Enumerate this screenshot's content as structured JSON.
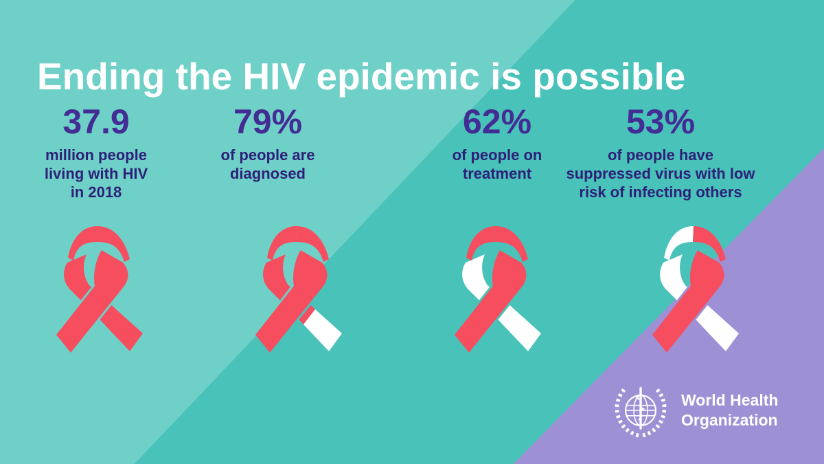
{
  "title": "Ending the HIV epidemic is possible",
  "colors": {
    "background_teal": "#49c2ba",
    "background_light_teal": "#6fd0c8",
    "corner_purple": "#9d90d5",
    "ribbon_red": "#f64d5f",
    "white": "#ffffff",
    "stat_number": "#432c94",
    "stat_text": "#2e2078"
  },
  "stats": [
    {
      "value": "37.9",
      "label": [
        "million people",
        "living with HIV",
        "in 2018"
      ],
      "ribbon_white_parts": []
    },
    {
      "value": "79%",
      "label": [
        "of people are",
        "diagnosed"
      ],
      "ribbon_white_parts": [
        "tail_lower"
      ]
    },
    {
      "value": "62%",
      "label": [
        "of people on",
        "treatment"
      ],
      "ribbon_white_parts": [
        "left_band",
        "tail_upper",
        "tail_lower"
      ]
    },
    {
      "value": "53%",
      "label": [
        "of people have",
        "suppressed virus with low",
        "risk of infecting others"
      ],
      "ribbon_white_parts": [
        "arc_left",
        "left_band",
        "tail_upper",
        "tail_lower"
      ]
    }
  ],
  "logo": {
    "line1": "World Health",
    "line2": "Organization"
  }
}
